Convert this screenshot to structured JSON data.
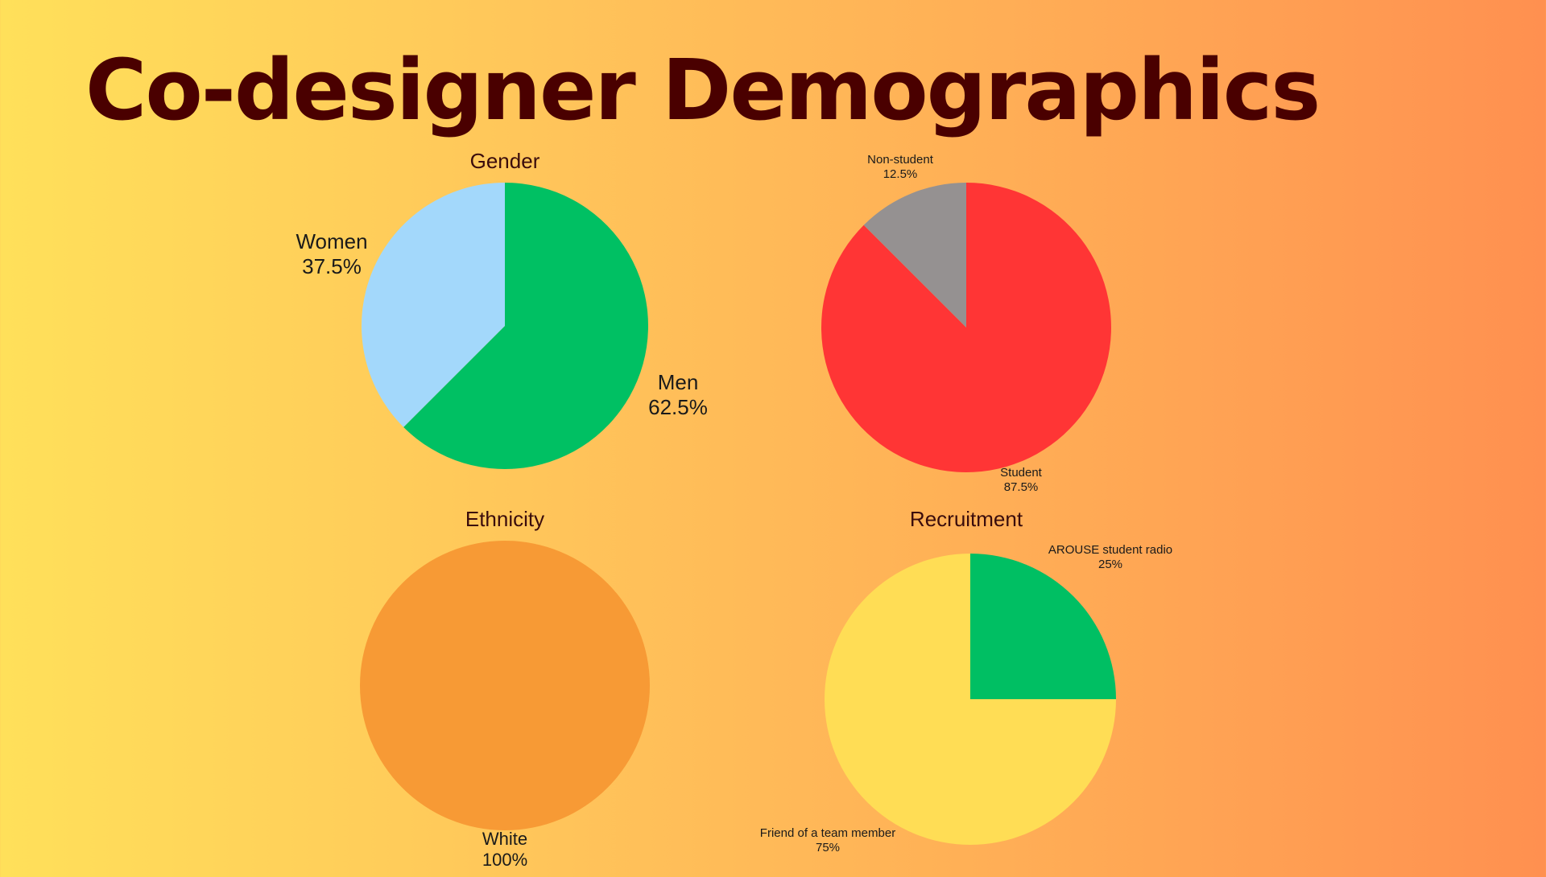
{
  "title": "Co-designer Demographics",
  "chart_data": [
    {
      "id": "gender",
      "type": "pie",
      "title": "Gender",
      "start_angle_deg": 0,
      "slices": [
        {
          "label": "Men",
          "value": 62.5,
          "pct_label": "62.5%",
          "color": "#00c063"
        },
        {
          "label": "Women",
          "value": 37.5,
          "pct_label": "37.5%",
          "color": "#a3d8fb"
        }
      ]
    },
    {
      "id": "student",
      "type": "pie",
      "title": "",
      "start_angle_deg": 0,
      "slices": [
        {
          "label": "Student",
          "value": 87.5,
          "pct_label": "87.5%",
          "color": "#ff3535"
        },
        {
          "label": "Non-student",
          "value": 12.5,
          "pct_label": "12.5%",
          "color": "#959191"
        }
      ]
    },
    {
      "id": "ethnicity",
      "type": "pie",
      "title": "Ethnicity",
      "start_angle_deg": 0,
      "slices": [
        {
          "label": "White",
          "value": 100,
          "pct_label": "100%",
          "color": "#f79a35"
        }
      ]
    },
    {
      "id": "recruitment",
      "type": "pie",
      "title": "Recruitment",
      "start_angle_deg": 0,
      "slices": [
        {
          "label": "AROUSE student radio",
          "value": 25,
          "pct_label": "25%",
          "color": "#00bf63"
        },
        {
          "label": "Friend of a team member",
          "value": 75,
          "pct_label": "75%",
          "color": "#ffdd55"
        }
      ]
    }
  ]
}
